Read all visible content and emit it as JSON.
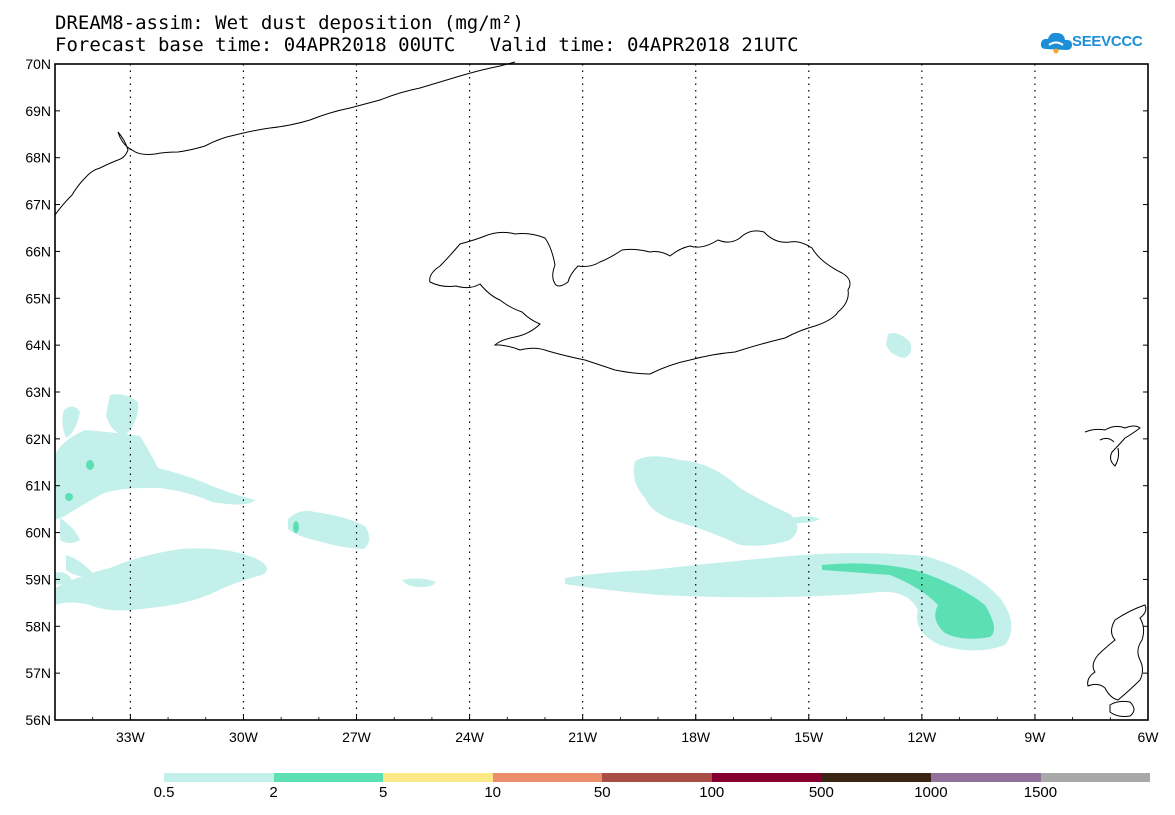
{
  "title": {
    "line1": "DREAM8-assim: Wet dust deposition (mg/m²)",
    "line2": "Forecast base time: 04APR2018 00UTC   Valid time: 04APR2018 21UTC"
  },
  "logo": {
    "text": "SEEVCCC",
    "color": "#1c8fd8"
  },
  "map": {
    "lon_range": [
      -35,
      -6
    ],
    "lat_range": [
      56,
      70
    ],
    "lat_labels": [
      "70N",
      "69N",
      "68N",
      "67N",
      "66N",
      "65N",
      "64N",
      "63N",
      "62N",
      "61N",
      "60N",
      "59N",
      "58N",
      "57N",
      "56N"
    ],
    "lon_labels": [
      "33W",
      "30W",
      "27W",
      "24W",
      "21W",
      "18W",
      "15W",
      "12W",
      "9W",
      "6W"
    ],
    "gridlines": "dotted"
  },
  "legend": {
    "labels": [
      "0.5",
      "2",
      "5",
      "10",
      "50",
      "100",
      "500",
      "1000",
      "1500"
    ],
    "colors": [
      "#c4f0ec",
      "#5ddfb4",
      "#fde886",
      "#ec8e6c",
      "#a84e45",
      "#84002f",
      "#3a2414",
      "#91709b",
      "#a8a8a8"
    ]
  }
}
